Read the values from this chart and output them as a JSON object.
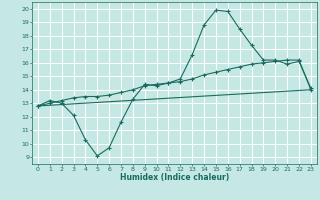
{
  "title": "",
  "xlabel": "Humidex (Indice chaleur)",
  "xlim": [
    -0.5,
    23.5
  ],
  "ylim": [
    8.5,
    20.5
  ],
  "yticks": [
    9,
    10,
    11,
    12,
    13,
    14,
    15,
    16,
    17,
    18,
    19,
    20
  ],
  "xticks": [
    0,
    1,
    2,
    3,
    4,
    5,
    6,
    7,
    8,
    9,
    10,
    11,
    12,
    13,
    14,
    15,
    16,
    17,
    18,
    19,
    20,
    21,
    22,
    23
  ],
  "bg_color": "#c5e8e5",
  "grid_color": "#ffffff",
  "line_color": "#1a6b5e",
  "line1_x": [
    0,
    1,
    2,
    3,
    4,
    5,
    6,
    7,
    8,
    9,
    10,
    11,
    12,
    13,
    14,
    15,
    16,
    17,
    18,
    19,
    20,
    21,
    22,
    23
  ],
  "line1_y": [
    12.8,
    13.2,
    13.0,
    12.1,
    10.3,
    9.1,
    9.7,
    11.6,
    13.3,
    14.4,
    14.3,
    14.5,
    14.8,
    16.6,
    18.8,
    19.9,
    19.8,
    18.5,
    17.3,
    16.2,
    16.2,
    15.9,
    16.1,
    14.1
  ],
  "line2_x": [
    0,
    1,
    2,
    3,
    4,
    5,
    6,
    7,
    8,
    9,
    10,
    11,
    12,
    13,
    14,
    15,
    16,
    17,
    18,
    19,
    20,
    21,
    22,
    23
  ],
  "line2_y": [
    12.8,
    13.0,
    13.2,
    13.4,
    13.5,
    13.5,
    13.6,
    13.8,
    14.0,
    14.3,
    14.4,
    14.5,
    14.6,
    14.8,
    15.1,
    15.3,
    15.5,
    15.7,
    15.9,
    16.0,
    16.1,
    16.2,
    16.2,
    14.0
  ],
  "line3_x": [
    0,
    23
  ],
  "line3_y": [
    12.8,
    14.0
  ]
}
